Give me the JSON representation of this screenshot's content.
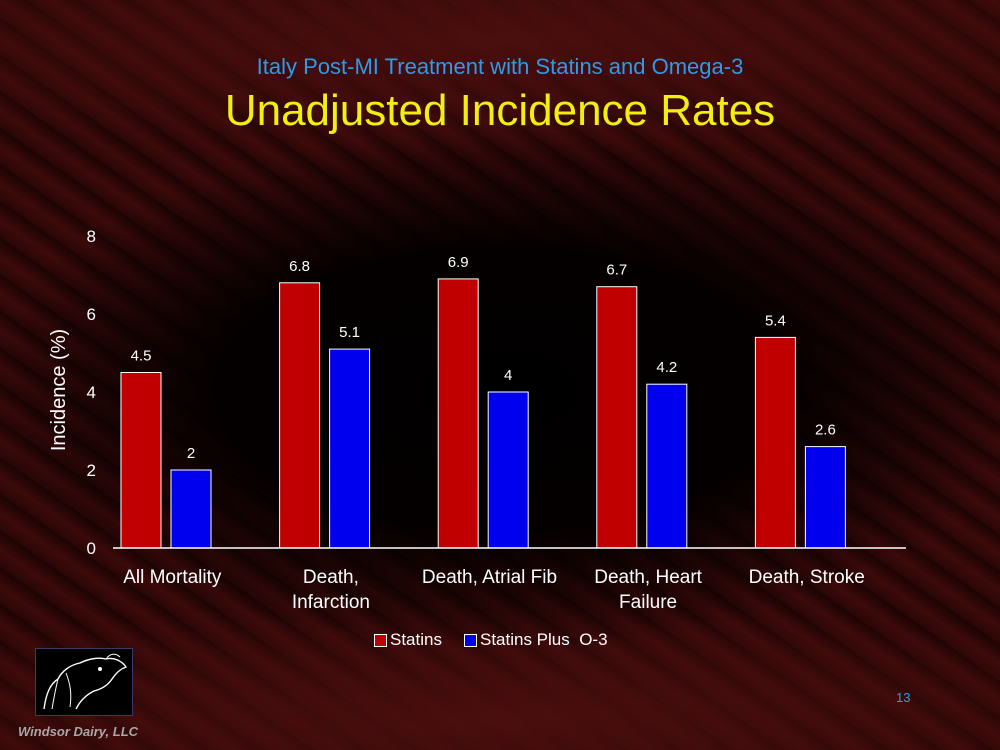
{
  "slide": {
    "subtitle": "Italy Post-MI Treatment with Statins and Omega-3",
    "title": "Unadjusted Incidence Rates",
    "company": "Windsor Dairy, LLC",
    "page_number": "13"
  },
  "chart_data": {
    "type": "bar",
    "categories": [
      "All Mortality",
      "Death, Infarction",
      "Death, Atrial Fib",
      "Death, Heart Failure",
      "Death, Stroke"
    ],
    "category_lines": [
      [
        "All Mortality"
      ],
      [
        "Death,",
        "Infarction"
      ],
      [
        "Death, Atrial Fib"
      ],
      [
        "Death, Heart",
        "Failure"
      ],
      [
        "Death, Stroke"
      ]
    ],
    "series": [
      {
        "name": "Statins",
        "values": [
          4.5,
          6.8,
          6.9,
          6.7,
          5.4
        ],
        "color": "#c00000",
        "labels": [
          "4.5",
          "6.8",
          "6.9",
          "6.7",
          "5.4"
        ]
      },
      {
        "name": "Statins Plus  O-3",
        "values": [
          2,
          5.1,
          4,
          4.2,
          2.6
        ],
        "color": "#0000ee",
        "labels": [
          "2",
          "5.1",
          "4",
          "4.2",
          "2.6"
        ]
      }
    ],
    "ylabel": "Incidence (%)",
    "xlabel": "",
    "ylim": [
      0,
      8
    ],
    "yticks": [
      "0",
      "2",
      "4",
      "6",
      "8"
    ],
    "legend_position": "bottom",
    "grid": false
  },
  "icons": {
    "logo": "horse-head-logo-icon"
  }
}
